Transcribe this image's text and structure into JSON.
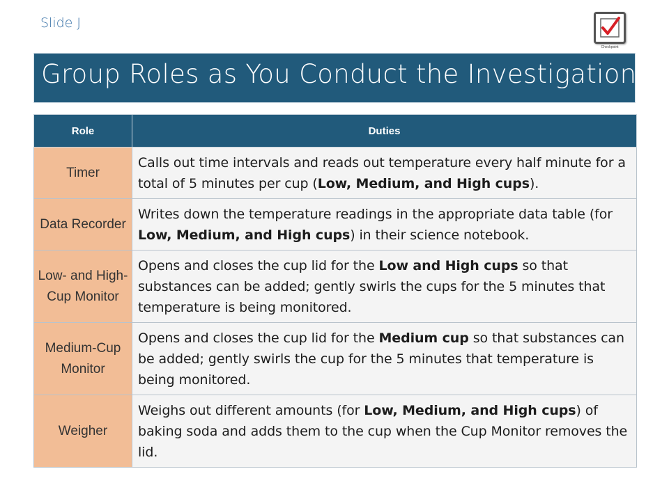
{
  "slide_label": "Slide J",
  "checkpoint": {
    "icon": "checkmark-icon",
    "caption": "Checkpoint",
    "check_color": "#d81f26"
  },
  "title": "Group Roles as You Conduct the Investigation",
  "table": {
    "headers": {
      "role": "Role",
      "duties": "Duties"
    },
    "rows": [
      {
        "role": "Timer",
        "duty": [
          {
            "t": "Calls out time intervals and reads out temperature every half minute for a total of 5 minutes per cup ("
          },
          {
            "t": "Low, Medium, and High cups",
            "b": true
          },
          {
            "t": ")."
          }
        ]
      },
      {
        "role": "Data Recorder",
        "duty": [
          {
            "t": "Writes down the temperature readings in the appropriate data table (for "
          },
          {
            "t": "Low, Medium, and High cups",
            "b": true
          },
          {
            "t": ") in their science notebook."
          }
        ]
      },
      {
        "role": "Low- and High-Cup Monitor",
        "duty": [
          {
            "t": "Opens and closes the cup lid for the "
          },
          {
            "t": "Low and High cups",
            "b": true
          },
          {
            "t": " so that substances can be added; gently swirls the cups for the 5 minutes that temperature is being monitored."
          }
        ]
      },
      {
        "role": "Medium-Cup Monitor",
        "duty": [
          {
            "t": "Opens and closes the cup lid for the "
          },
          {
            "t": "Medium cup",
            "b": true
          },
          {
            "t": " so that substances can be added; gently swirls the cup for the 5 minutes that temperature is being monitored."
          }
        ]
      },
      {
        "role": "Weigher",
        "duty": [
          {
            "t": "Weighs out different amounts (for "
          },
          {
            "t": "Low, Medium, and High cups",
            "b": true
          },
          {
            "t": ") of baking soda and adds them to the cup when the Cup Monitor removes the lid."
          }
        ]
      }
    ]
  }
}
